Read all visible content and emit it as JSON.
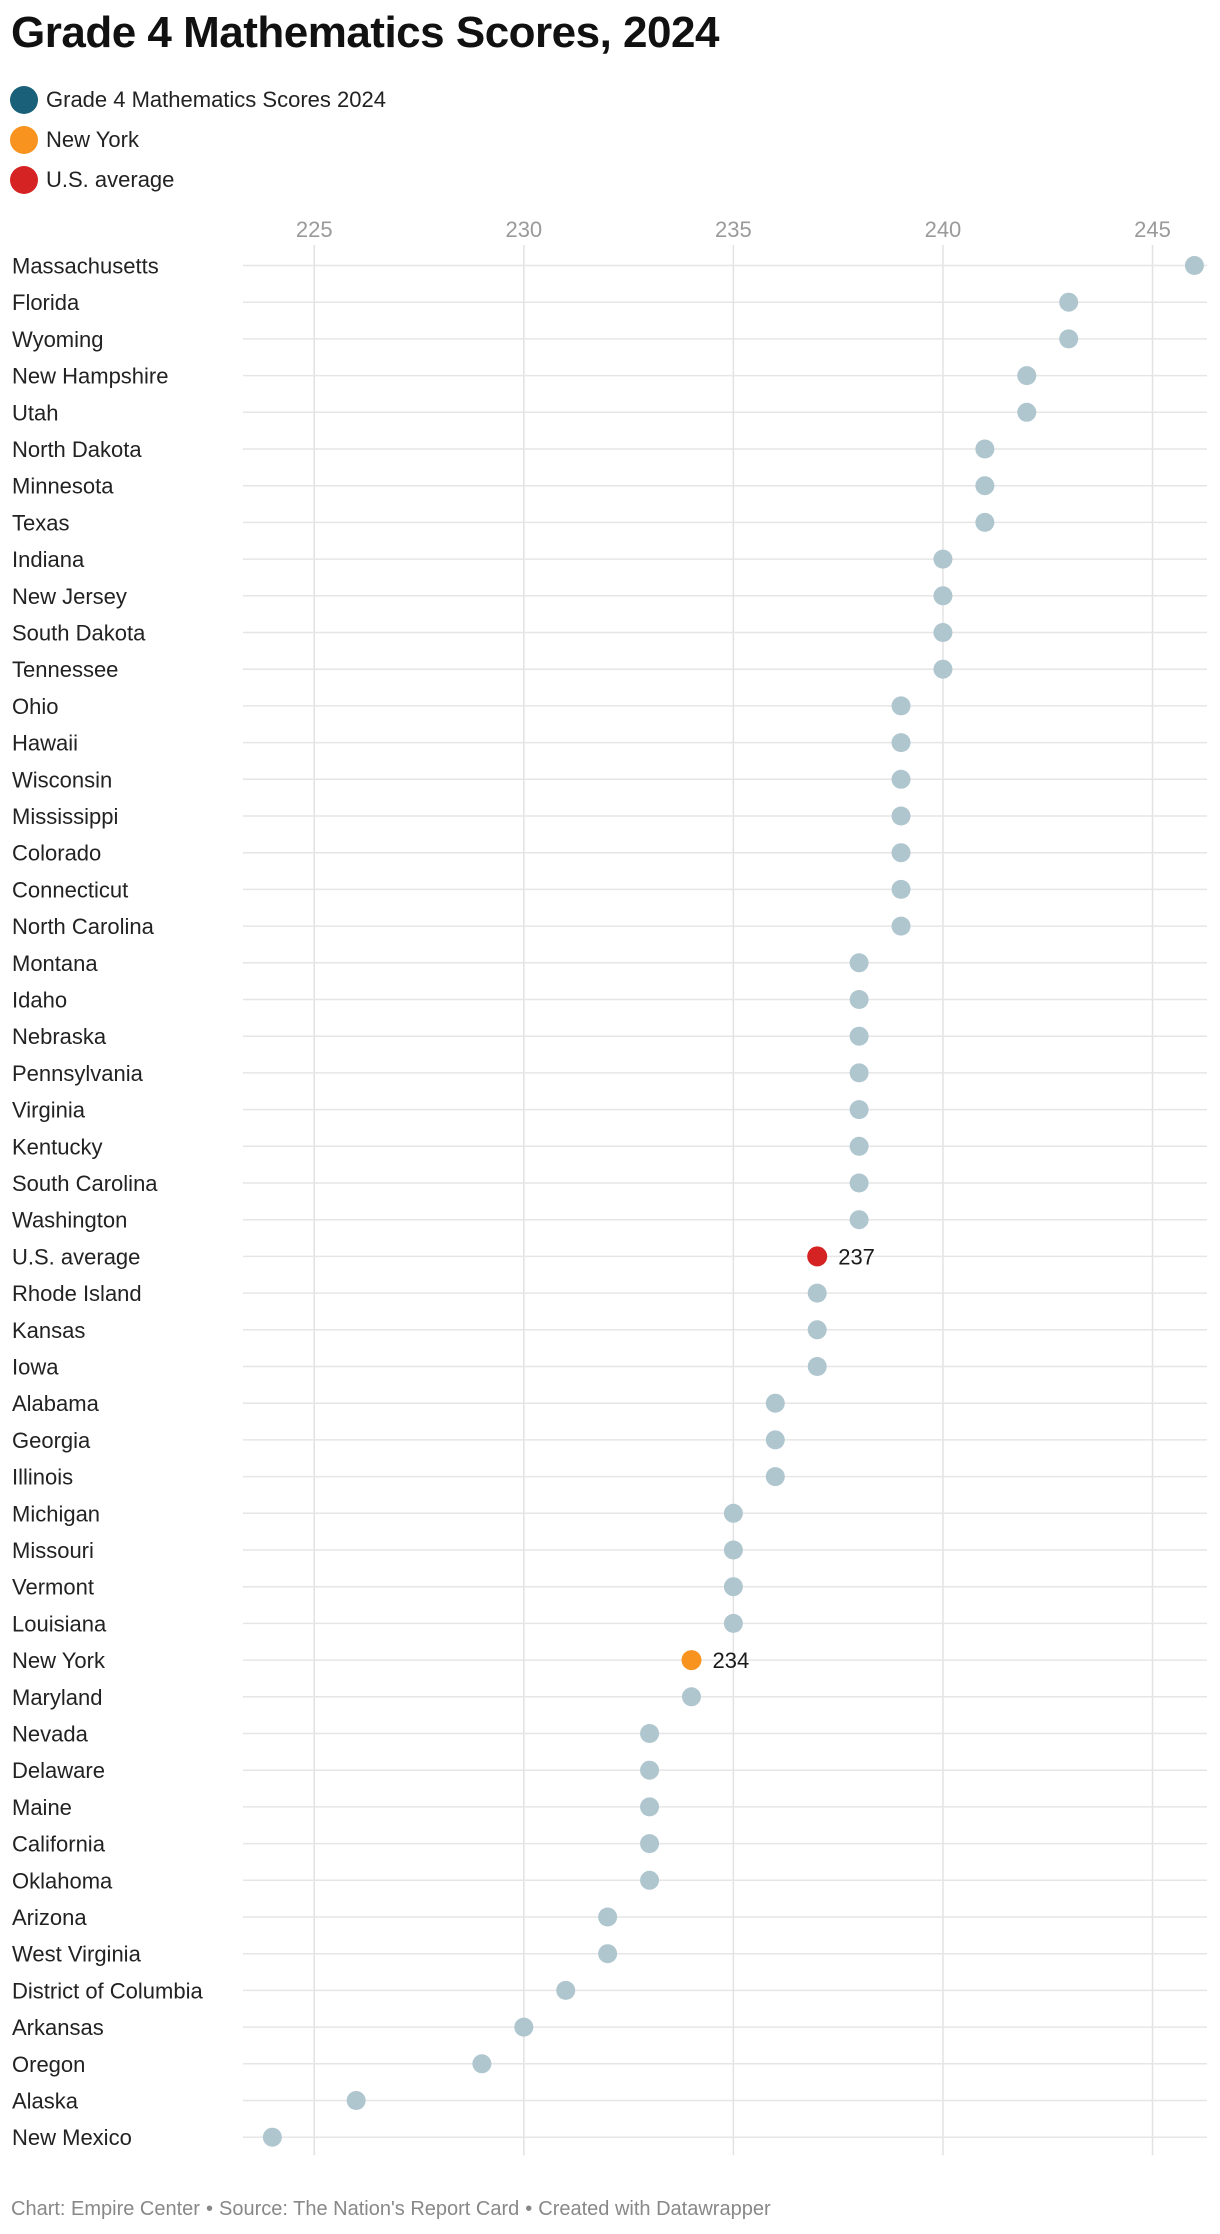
{
  "title": "Grade 4 Mathematics Scores, 2024",
  "legend": [
    {
      "label": "Grade 4 Mathematics Scores 2024",
      "color": "#1a6078"
    },
    {
      "label": "New York",
      "color": "#f7931e"
    },
    {
      "label": "U.S. average",
      "color": "#d52222"
    }
  ],
  "footer": {
    "chart_by": "Chart: Empire Center",
    "source": "Source: The Nation's Report Card",
    "created_with": "Created with Datawrapper",
    "separator": "•"
  },
  "chart_data": {
    "type": "scatter",
    "title": "Grade 4 Mathematics Scores, 2024",
    "xlabel": "",
    "ylabel": "",
    "xlim": [
      223.3,
      246.3
    ],
    "xticks": [
      225,
      230,
      235,
      240,
      245
    ],
    "grid": true,
    "default_color": "#afc6cf",
    "highlights": [
      {
        "category": "U.S. average",
        "color": "#d52222",
        "label": "237"
      },
      {
        "category": "New York",
        "color": "#f7931e",
        "label": "234"
      }
    ],
    "categories": [
      "Massachusetts",
      "Florida",
      "Wyoming",
      "New Hampshire",
      "Utah",
      "North Dakota",
      "Minnesota",
      "Texas",
      "Indiana",
      "New Jersey",
      "South Dakota",
      "Tennessee",
      "Ohio",
      "Hawaii",
      "Wisconsin",
      "Mississippi",
      "Colorado",
      "Connecticut",
      "North Carolina",
      "Montana",
      "Idaho",
      "Nebraska",
      "Pennsylvania",
      "Virginia",
      "Kentucky",
      "South Carolina",
      "Washington",
      "U.S. average",
      "Rhode Island",
      "Kansas",
      "Iowa",
      "Alabama",
      "Georgia",
      "Illinois",
      "Michigan",
      "Missouri",
      "Vermont",
      "Louisiana",
      "New York",
      "Maryland",
      "Nevada",
      "Delaware",
      "Maine",
      "California",
      "Oklahoma",
      "Arizona",
      "West Virginia",
      "District of Columbia",
      "Arkansas",
      "Oregon",
      "Alaska",
      "New Mexico"
    ],
    "values": [
      246,
      243,
      243,
      242,
      242,
      241,
      241,
      241,
      240,
      240,
      240,
      240,
      239,
      239,
      239,
      239,
      239,
      239,
      239,
      238,
      238,
      238,
      238,
      238,
      238,
      238,
      238,
      237,
      237,
      237,
      237,
      236,
      236,
      236,
      235,
      235,
      235,
      235,
      234,
      234,
      233,
      233,
      233,
      233,
      233,
      232,
      232,
      231,
      230,
      229,
      226,
      224
    ]
  }
}
